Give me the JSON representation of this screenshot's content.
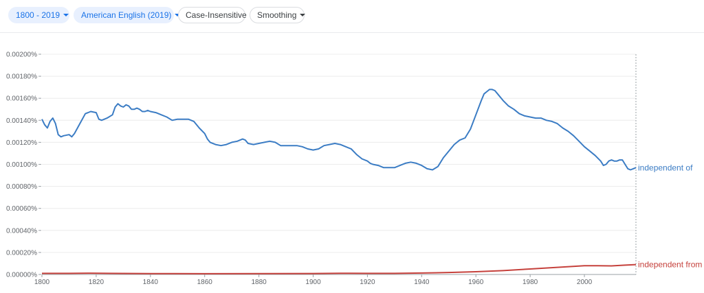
{
  "toolbar": {
    "year_range": "1800 - 2019",
    "corpus": "American English (2019)",
    "case_option": "Case-Insensitive",
    "smoothing": "Smoothing"
  },
  "colors": {
    "series_blue": "#3b7cc4",
    "series_red": "#c5403b",
    "chip_selected_bg": "#e8f0fe",
    "chip_selected_text": "#1a73e8",
    "grid": "#ececec"
  },
  "icons": [
    "chevron-down-icon"
  ],
  "chart_data": {
    "type": "line",
    "xlim": [
      1800,
      2019
    ],
    "ylim": [
      0,
      0.002
    ],
    "grid": true,
    "legend": "inline-right",
    "x_ticks": [
      "1800",
      "1820",
      "1840",
      "1860",
      "1880",
      "1900",
      "1920",
      "1940",
      "1960",
      "1980",
      "2000"
    ],
    "y_ticks": [
      "0.00000%",
      "0.00020%",
      "0.00040%",
      "0.00060%",
      "0.00080%",
      "0.00100%",
      "0.00120%",
      "0.00140%",
      "0.00160%",
      "0.00180%",
      "0.00200%"
    ],
    "series": [
      {
        "name": "independent of",
        "color": "#3b7cc4",
        "points": [
          [
            1800,
            0.00141
          ],
          [
            1801,
            0.00136
          ],
          [
            1802,
            0.00133
          ],
          [
            1803,
            0.00139
          ],
          [
            1804,
            0.00142
          ],
          [
            1805,
            0.00137
          ],
          [
            1806,
            0.00127
          ],
          [
            1807,
            0.00125
          ],
          [
            1808,
            0.00126
          ],
          [
            1810,
            0.00127
          ],
          [
            1811,
            0.00125
          ],
          [
            1812,
            0.00128
          ],
          [
            1814,
            0.00137
          ],
          [
            1816,
            0.00146
          ],
          [
            1818,
            0.00148
          ],
          [
            1820,
            0.00147
          ],
          [
            1821,
            0.00141
          ],
          [
            1822,
            0.0014
          ],
          [
            1824,
            0.00142
          ],
          [
            1826,
            0.00145
          ],
          [
            1827,
            0.00152
          ],
          [
            1828,
            0.00155
          ],
          [
            1829,
            0.00153
          ],
          [
            1830,
            0.00152
          ],
          [
            1831,
            0.00154
          ],
          [
            1832,
            0.00153
          ],
          [
            1833,
            0.0015
          ],
          [
            1834,
            0.0015
          ],
          [
            1835,
            0.00151
          ],
          [
            1836,
            0.0015
          ],
          [
            1837,
            0.00148
          ],
          [
            1838,
            0.00148
          ],
          [
            1839,
            0.00149
          ],
          [
            1840,
            0.00148
          ],
          [
            1842,
            0.00147
          ],
          [
            1844,
            0.00145
          ],
          [
            1846,
            0.00143
          ],
          [
            1848,
            0.0014
          ],
          [
            1850,
            0.00141
          ],
          [
            1852,
            0.00141
          ],
          [
            1854,
            0.00141
          ],
          [
            1856,
            0.00139
          ],
          [
            1858,
            0.00133
          ],
          [
            1860,
            0.00128
          ],
          [
            1861,
            0.00123
          ],
          [
            1862,
            0.0012
          ],
          [
            1864,
            0.00118
          ],
          [
            1866,
            0.00117
          ],
          [
            1868,
            0.00118
          ],
          [
            1870,
            0.0012
          ],
          [
            1872,
            0.00121
          ],
          [
            1874,
            0.00123
          ],
          [
            1875,
            0.00122
          ],
          [
            1876,
            0.00119
          ],
          [
            1878,
            0.00118
          ],
          [
            1880,
            0.00119
          ],
          [
            1882,
            0.0012
          ],
          [
            1884,
            0.00121
          ],
          [
            1886,
            0.0012
          ],
          [
            1888,
            0.00117
          ],
          [
            1890,
            0.00117
          ],
          [
            1892,
            0.00117
          ],
          [
            1894,
            0.00117
          ],
          [
            1896,
            0.00116
          ],
          [
            1898,
            0.00114
          ],
          [
            1900,
            0.00113
          ],
          [
            1902,
            0.00114
          ],
          [
            1904,
            0.00117
          ],
          [
            1906,
            0.00118
          ],
          [
            1908,
            0.00119
          ],
          [
            1910,
            0.00118
          ],
          [
            1912,
            0.00116
          ],
          [
            1914,
            0.00114
          ],
          [
            1916,
            0.00109
          ],
          [
            1918,
            0.00105
          ],
          [
            1920,
            0.00103
          ],
          [
            1921,
            0.00101
          ],
          [
            1922,
            0.001
          ],
          [
            1924,
            0.00099
          ],
          [
            1926,
            0.00097
          ],
          [
            1928,
            0.00097
          ],
          [
            1930,
            0.00097
          ],
          [
            1932,
            0.00099
          ],
          [
            1934,
            0.00101
          ],
          [
            1936,
            0.00102
          ],
          [
            1938,
            0.00101
          ],
          [
            1940,
            0.00099
          ],
          [
            1942,
            0.00096
          ],
          [
            1944,
            0.00095
          ],
          [
            1946,
            0.00098
          ],
          [
            1948,
            0.00106
          ],
          [
            1950,
            0.00112
          ],
          [
            1952,
            0.00118
          ],
          [
            1954,
            0.00122
          ],
          [
            1956,
            0.00124
          ],
          [
            1958,
            0.00132
          ],
          [
            1960,
            0.00145
          ],
          [
            1962,
            0.00158
          ],
          [
            1963,
            0.00164
          ],
          [
            1964,
            0.00166
          ],
          [
            1965,
            0.00168
          ],
          [
            1966,
            0.00168
          ],
          [
            1967,
            0.00167
          ],
          [
            1968,
            0.00164
          ],
          [
            1970,
            0.00158
          ],
          [
            1972,
            0.00153
          ],
          [
            1974,
            0.0015
          ],
          [
            1976,
            0.00146
          ],
          [
            1978,
            0.00144
          ],
          [
            1980,
            0.00143
          ],
          [
            1982,
            0.00142
          ],
          [
            1984,
            0.00142
          ],
          [
            1986,
            0.0014
          ],
          [
            1988,
            0.00139
          ],
          [
            1990,
            0.00137
          ],
          [
            1992,
            0.00133
          ],
          [
            1994,
            0.0013
          ],
          [
            1996,
            0.00126
          ],
          [
            1998,
            0.00121
          ],
          [
            2000,
            0.00116
          ],
          [
            2002,
            0.00112
          ],
          [
            2004,
            0.00108
          ],
          [
            2006,
            0.00103
          ],
          [
            2007,
            0.00099
          ],
          [
            2008,
            0.001
          ],
          [
            2009,
            0.00103
          ],
          [
            2010,
            0.00104
          ],
          [
            2011,
            0.00103
          ],
          [
            2012,
            0.00103
          ],
          [
            2013,
            0.00104
          ],
          [
            2014,
            0.00104
          ],
          [
            2015,
            0.001
          ],
          [
            2016,
            0.00096
          ],
          [
            2017,
            0.00095
          ],
          [
            2018,
            0.00096
          ],
          [
            2019,
            0.00097
          ]
        ]
      },
      {
        "name": "independent from",
        "color": "#c5403b",
        "points": [
          [
            1800,
            1e-05
          ],
          [
            1810,
            1e-05
          ],
          [
            1818,
            1.2e-05
          ],
          [
            1825,
            1e-05
          ],
          [
            1840,
            8e-06
          ],
          [
            1860,
            7e-06
          ],
          [
            1880,
            8e-06
          ],
          [
            1900,
            9e-06
          ],
          [
            1910,
            1.1e-05
          ],
          [
            1920,
            1e-05
          ],
          [
            1930,
            1e-05
          ],
          [
            1940,
            1.3e-05
          ],
          [
            1950,
            1.8e-05
          ],
          [
            1960,
            2.5e-05
          ],
          [
            1970,
            3.5e-05
          ],
          [
            1980,
            5e-05
          ],
          [
            1990,
            6.5e-05
          ],
          [
            2000,
            8e-05
          ],
          [
            2005,
            8e-05
          ],
          [
            2010,
            7.8e-05
          ],
          [
            2015,
            8.5e-05
          ],
          [
            2019,
            9e-05
          ]
        ]
      }
    ]
  }
}
